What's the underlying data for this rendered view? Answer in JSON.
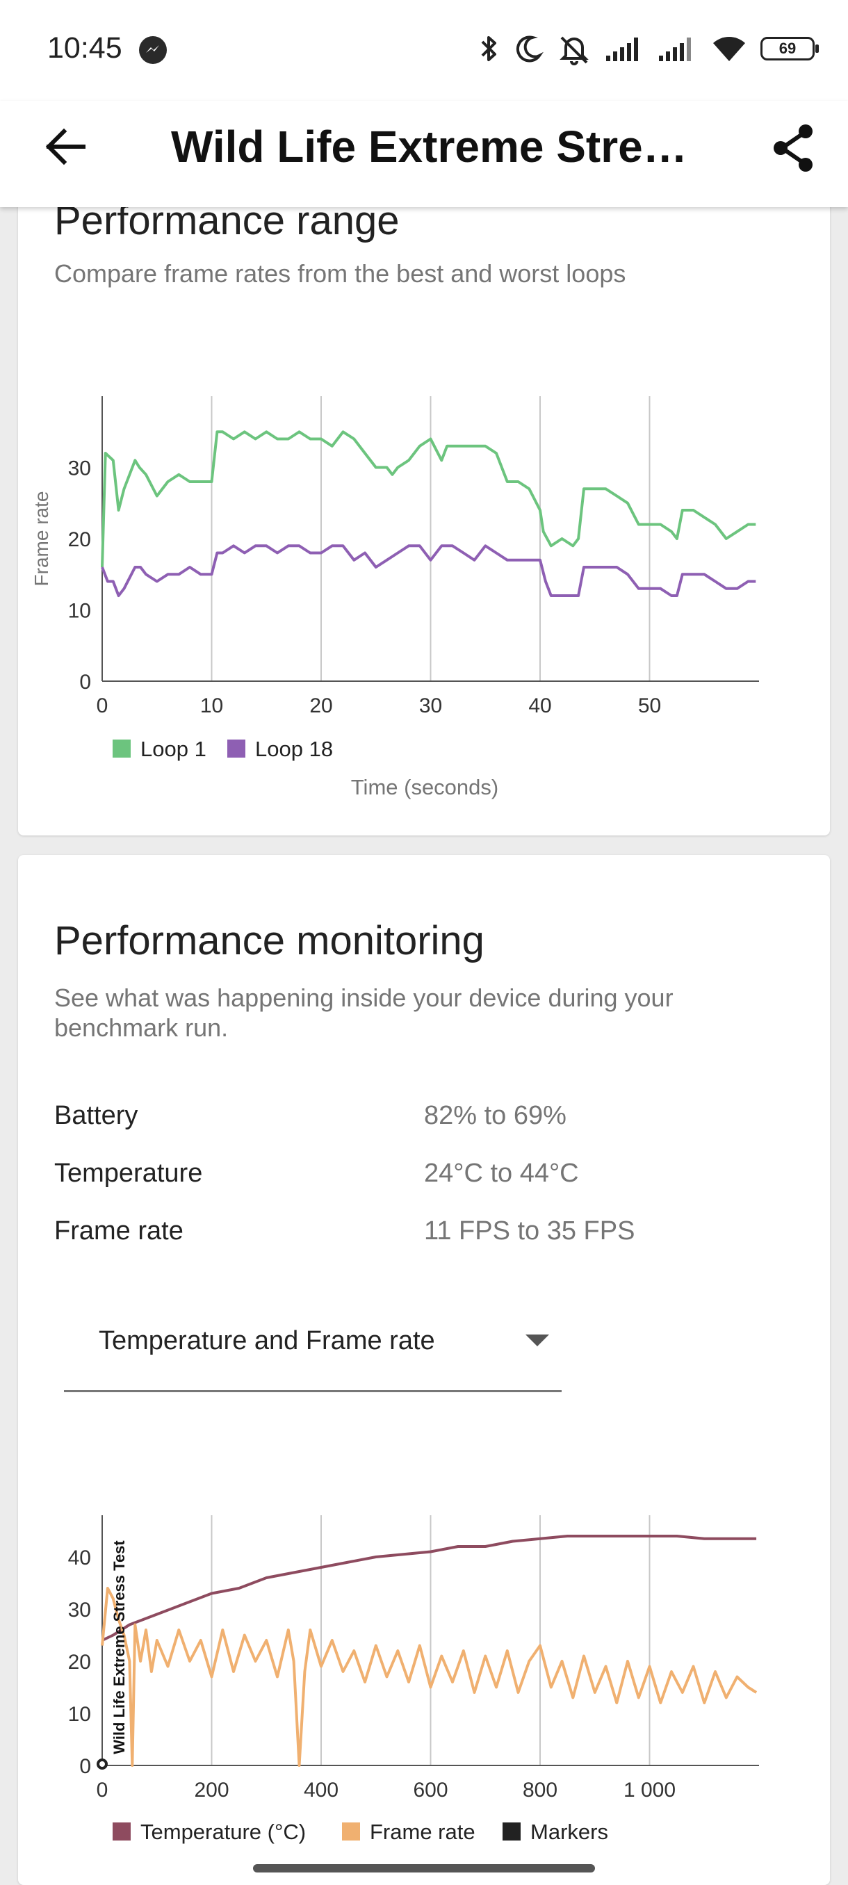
{
  "status_bar": {
    "time": "10:45",
    "notification_icon": "messenger-icon",
    "icons": [
      "bluetooth-icon",
      "moon-icon",
      "bell-off-icon",
      "signal-icon",
      "signal-icon",
      "wifi-icon"
    ],
    "battery": "69"
  },
  "app_bar": {
    "title": "Wild Life Extreme Stress Test",
    "back_icon": "arrow-back-icon",
    "share_icon": "share-icon"
  },
  "performance_range": {
    "title": "Performance range",
    "subtitle": "Compare frame rates from the best and worst loops"
  },
  "performance_monitoring": {
    "title": "Performance monitoring",
    "subtitle_line1": "See what was happening inside your device during your",
    "subtitle_line2": "benchmark run.",
    "stats": [
      {
        "label": "Battery",
        "value": "82% to 69%"
      },
      {
        "label": "Temperature",
        "value": "24°C to 44°C"
      },
      {
        "label": "Frame rate",
        "value": "11 FPS to 35 FPS"
      }
    ],
    "dropdown": {
      "selected": "Temperature and Frame rate"
    }
  },
  "chart_data": [
    {
      "type": "line",
      "title": "",
      "xlabel": "Time (seconds)",
      "ylabel": "Frame rate",
      "xlim": [
        0,
        60
      ],
      "ylim": [
        0,
        40
      ],
      "xticks": [
        "0",
        "10",
        "20",
        "30",
        "40",
        "50"
      ],
      "yticks": [
        "0",
        "10",
        "20",
        "30"
      ],
      "grid": "vertical",
      "legend_position": "bottom-left",
      "series": [
        {
          "name": "Loop 1",
          "color": "#6cc47e",
          "x": [
            0,
            0.3,
            1,
            1.5,
            2,
            3,
            3.4,
            4,
            5,
            6,
            7,
            8,
            9,
            10,
            10.5,
            11,
            12,
            13,
            14,
            15,
            16,
            17,
            18,
            19,
            20,
            21,
            22,
            23,
            24,
            25,
            26,
            26.5,
            27,
            28,
            29,
            30,
            31,
            31.5,
            32,
            33,
            34,
            35,
            36,
            37,
            38,
            39,
            40,
            40.3,
            41,
            42,
            43,
            43.5,
            44,
            45,
            46,
            47,
            48,
            49,
            50,
            51,
            52,
            52.5,
            53,
            54,
            55,
            56,
            57,
            58,
            59,
            59.7
          ],
          "values": [
            16,
            32,
            31,
            24,
            27,
            31,
            30,
            29,
            26,
            28,
            29,
            28,
            28,
            28,
            35,
            35,
            34,
            35,
            34,
            35,
            34,
            34,
            35,
            34,
            34,
            33,
            35,
            34,
            32,
            30,
            30,
            29,
            30,
            31,
            33,
            34,
            31,
            33,
            33,
            33,
            33,
            33,
            32,
            28,
            28,
            27,
            24,
            21,
            19,
            20,
            19,
            20,
            27,
            27,
            27,
            26,
            25,
            22,
            22,
            22,
            21,
            20,
            24,
            24,
            23,
            22,
            20,
            21,
            22,
            22
          ]
        },
        {
          "name": "Loop 18",
          "color": "#8e5fb3",
          "x": [
            0,
            0.5,
            1,
            1.5,
            2,
            3,
            3.5,
            4,
            5,
            6,
            7,
            8,
            9,
            10,
            10.5,
            11,
            12,
            13,
            14,
            15,
            16,
            17,
            18,
            19,
            20,
            21,
            22,
            23,
            24,
            25,
            26,
            27,
            28,
            29,
            30,
            31,
            32,
            33,
            34,
            35,
            36,
            37,
            38,
            39,
            40,
            40.5,
            41,
            42,
            43,
            43.5,
            44,
            45,
            46,
            47,
            48,
            49,
            50,
            51,
            52,
            52.5,
            53,
            54,
            55,
            56,
            57,
            58,
            59,
            59.7
          ],
          "values": [
            16,
            14,
            14,
            12,
            13,
            16,
            16,
            15,
            14,
            15,
            15,
            16,
            15,
            15,
            18,
            18,
            19,
            18,
            19,
            19,
            18,
            19,
            19,
            18,
            18,
            19,
            19,
            17,
            18,
            16,
            17,
            18,
            19,
            19,
            17,
            19,
            19,
            18,
            17,
            19,
            18,
            17,
            17,
            17,
            17,
            14,
            12,
            12,
            12,
            12,
            16,
            16,
            16,
            16,
            15,
            13,
            13,
            13,
            12,
            12,
            15,
            15,
            15,
            14,
            13,
            13,
            14,
            14
          ]
        }
      ]
    },
    {
      "type": "line",
      "title": "",
      "xlabel": "",
      "ylabel": "",
      "xlim": [
        0,
        1200
      ],
      "ylim": [
        0,
        48
      ],
      "xticks": [
        "0",
        "200",
        "400",
        "600",
        "800",
        "1 000"
      ],
      "yticks": [
        "0",
        "10",
        "20",
        "30",
        "40"
      ],
      "grid": "vertical",
      "legend_position": "bottom-left",
      "annotation": "Wild Life Extreme Stress Test",
      "series": [
        {
          "name": "Temperature (°C)",
          "color": "#8e4b5f",
          "x": [
            0,
            20,
            50,
            100,
            150,
            200,
            250,
            300,
            350,
            400,
            450,
            500,
            550,
            600,
            650,
            700,
            750,
            800,
            850,
            900,
            950,
            1000,
            1050,
            1100,
            1150,
            1195
          ],
          "values": [
            24,
            25,
            27,
            29,
            31,
            33,
            34,
            36,
            37,
            38,
            39,
            40,
            40.5,
            41,
            42,
            42,
            43,
            43.5,
            44,
            44,
            44,
            44,
            44,
            43.5,
            43.5,
            43.5
          ]
        },
        {
          "name": "Frame rate",
          "color": "#f0b070",
          "x": [
            0,
            10,
            20,
            30,
            40,
            50,
            55,
            60,
            70,
            80,
            90,
            100,
            120,
            140,
            160,
            180,
            200,
            220,
            240,
            260,
            280,
            300,
            320,
            340,
            350,
            360,
            370,
            380,
            400,
            420,
            440,
            460,
            480,
            500,
            520,
            540,
            560,
            580,
            600,
            620,
            640,
            660,
            680,
            700,
            720,
            740,
            760,
            780,
            800,
            820,
            840,
            860,
            880,
            900,
            920,
            940,
            960,
            980,
            1000,
            1020,
            1040,
            1060,
            1080,
            1100,
            1120,
            1140,
            1160,
            1180,
            1195
          ],
          "values": [
            23,
            34,
            32,
            28,
            25,
            20,
            0,
            27,
            20,
            26,
            18,
            24,
            19,
            26,
            20,
            24,
            17,
            26,
            18,
            25,
            20,
            24,
            17,
            26,
            20,
            0,
            18,
            26,
            19,
            24,
            18,
            22,
            16,
            23,
            17,
            22,
            16,
            23,
            15,
            21,
            16,
            22,
            14,
            21,
            15,
            22,
            14,
            20,
            23,
            15,
            20,
            13,
            21,
            14,
            19,
            12,
            20,
            13,
            19,
            12,
            18,
            14,
            19,
            12,
            18,
            13,
            17,
            15,
            14
          ]
        },
        {
          "name": "Markers",
          "color": "#222222",
          "x": [
            0
          ],
          "values": [
            0
          ]
        }
      ]
    }
  ]
}
